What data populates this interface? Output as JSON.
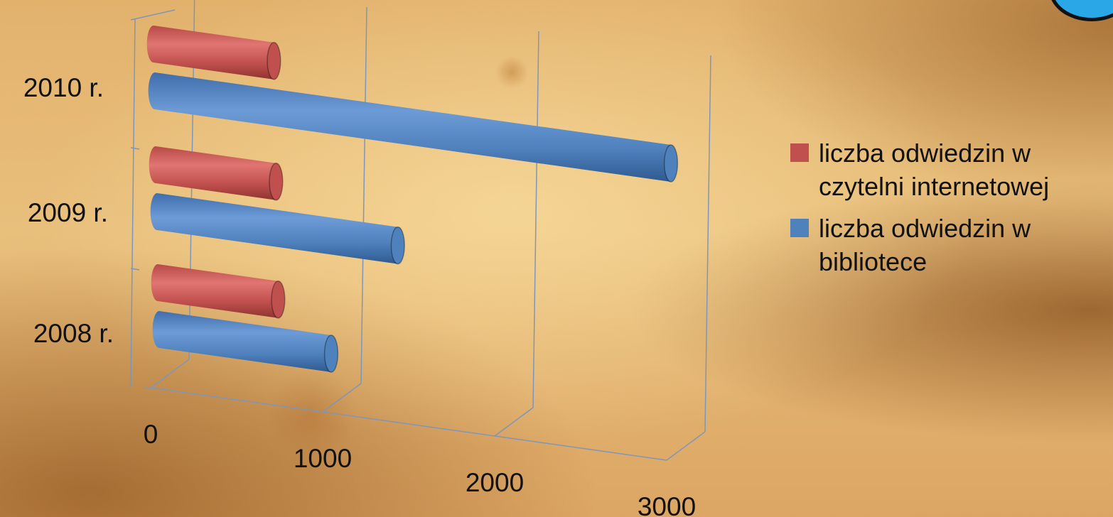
{
  "chart_data": {
    "type": "bar",
    "orientation": "horizontal",
    "style": "3d-cylinder",
    "categories": [
      "2008 r.",
      "2009 r.",
      "2010 r."
    ],
    "series": [
      {
        "name": "liczba odwiedzin w czytelni internetowej",
        "color": "#c0504d",
        "values": [
          700,
          700,
          700
        ]
      },
      {
        "name": "liczba odwiedzin w bibliotece",
        "color": "#4f81bd",
        "values": [
          1000,
          1400,
          3000
        ]
      }
    ],
    "xticks": [
      "0",
      "1000",
      "2000",
      "3000"
    ],
    "xlim": [
      0,
      3000
    ],
    "grid": true,
    "legend": "right"
  },
  "legend": {
    "series_1_label": "liczba odwiedzin w\nczytelni internetowej",
    "series_2_label": "liczba odwiedzin w\nbibliotece"
  },
  "colors": {
    "red_series": "#c0504d",
    "blue_series": "#4f81bd",
    "gridline": "#7f96b8"
  }
}
